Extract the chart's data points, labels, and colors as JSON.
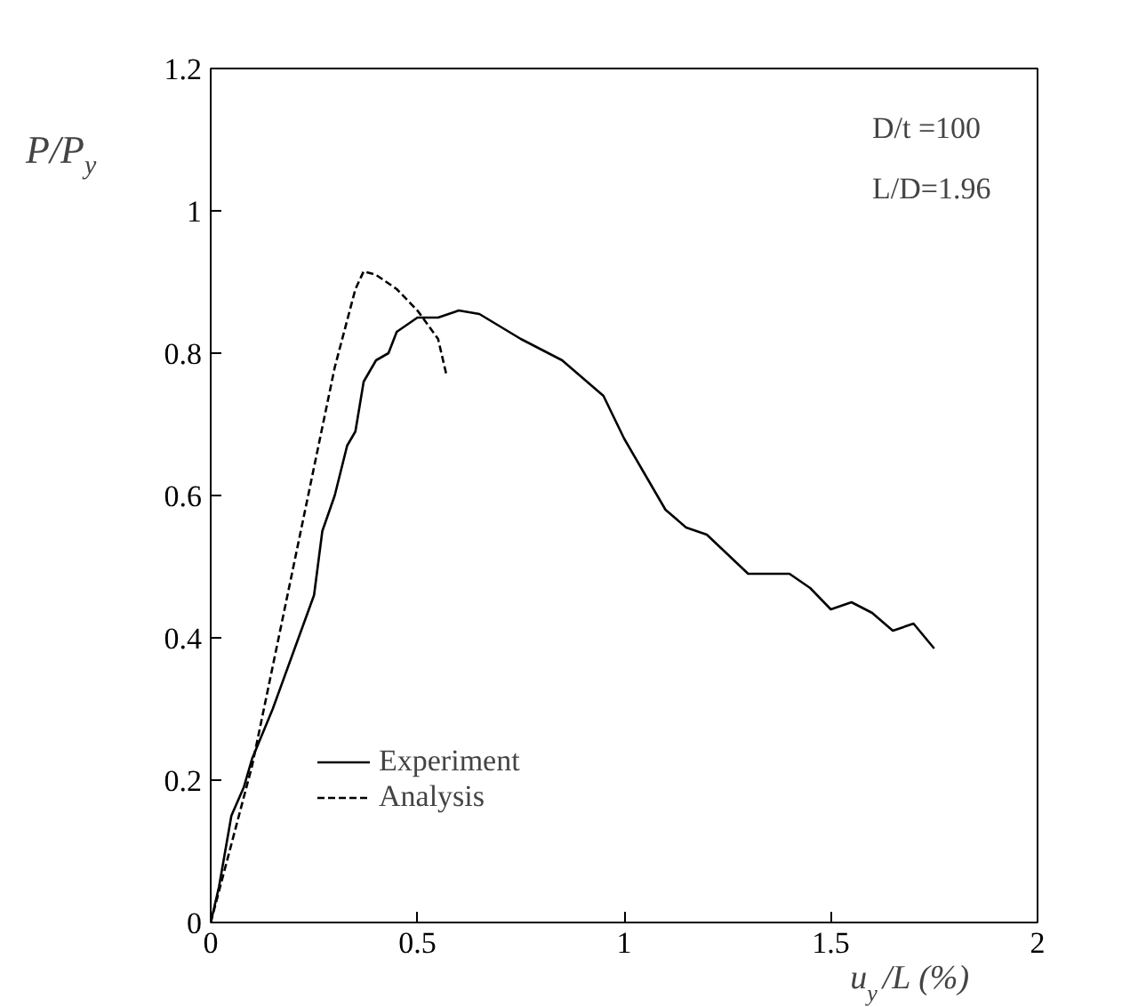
{
  "chart_data": {
    "type": "line",
    "xlabel": "u$_{y}$/L (%)",
    "ylabel": "P/P$_{y}$",
    "xlim": [
      0,
      2
    ],
    "ylim": [
      0,
      1.2
    ],
    "xticks": [
      0,
      0.5,
      1,
      1.5,
      2
    ],
    "yticks": [
      0,
      0.2,
      0.4,
      0.6,
      0.8,
      1,
      1.2
    ],
    "grid": false,
    "legend": "bottom left",
    "annotations": [
      "D/t =100",
      "L/D=1.96"
    ],
    "series": [
      {
        "name": "Experiment",
        "color": "#000000",
        "line_style": "solid",
        "x": [
          0,
          0.02,
          0.05,
          0.08,
          0.1,
          0.15,
          0.2,
          0.25,
          0.27,
          0.3,
          0.33,
          0.35,
          0.37,
          0.4,
          0.43,
          0.45,
          0.5,
          0.55,
          0.6,
          0.65,
          0.75,
          0.85,
          0.95,
          1.0,
          1.05,
          1.1,
          1.15,
          1.2,
          1.3,
          1.4,
          1.45,
          1.5,
          1.55,
          1.6,
          1.65,
          1.7,
          1.75
        ],
        "values": [
          0,
          0.05,
          0.15,
          0.19,
          0.23,
          0.3,
          0.38,
          0.46,
          0.55,
          0.6,
          0.67,
          0.69,
          0.76,
          0.79,
          0.8,
          0.83,
          0.85,
          0.85,
          0.86,
          0.855,
          0.82,
          0.79,
          0.74,
          0.68,
          0.63,
          0.58,
          0.555,
          0.545,
          0.49,
          0.49,
          0.47,
          0.44,
          0.45,
          0.435,
          0.41,
          0.42,
          0.385
        ]
      },
      {
        "name": "Analysis",
        "color": "#000000",
        "line_style": "dashed",
        "x": [
          0,
          0.1,
          0.2,
          0.3,
          0.35,
          0.37,
          0.4,
          0.45,
          0.5,
          0.55,
          0.57
        ],
        "values": [
          0,
          0.22,
          0.5,
          0.78,
          0.89,
          0.915,
          0.91,
          0.89,
          0.86,
          0.82,
          0.77
        ]
      }
    ]
  }
}
